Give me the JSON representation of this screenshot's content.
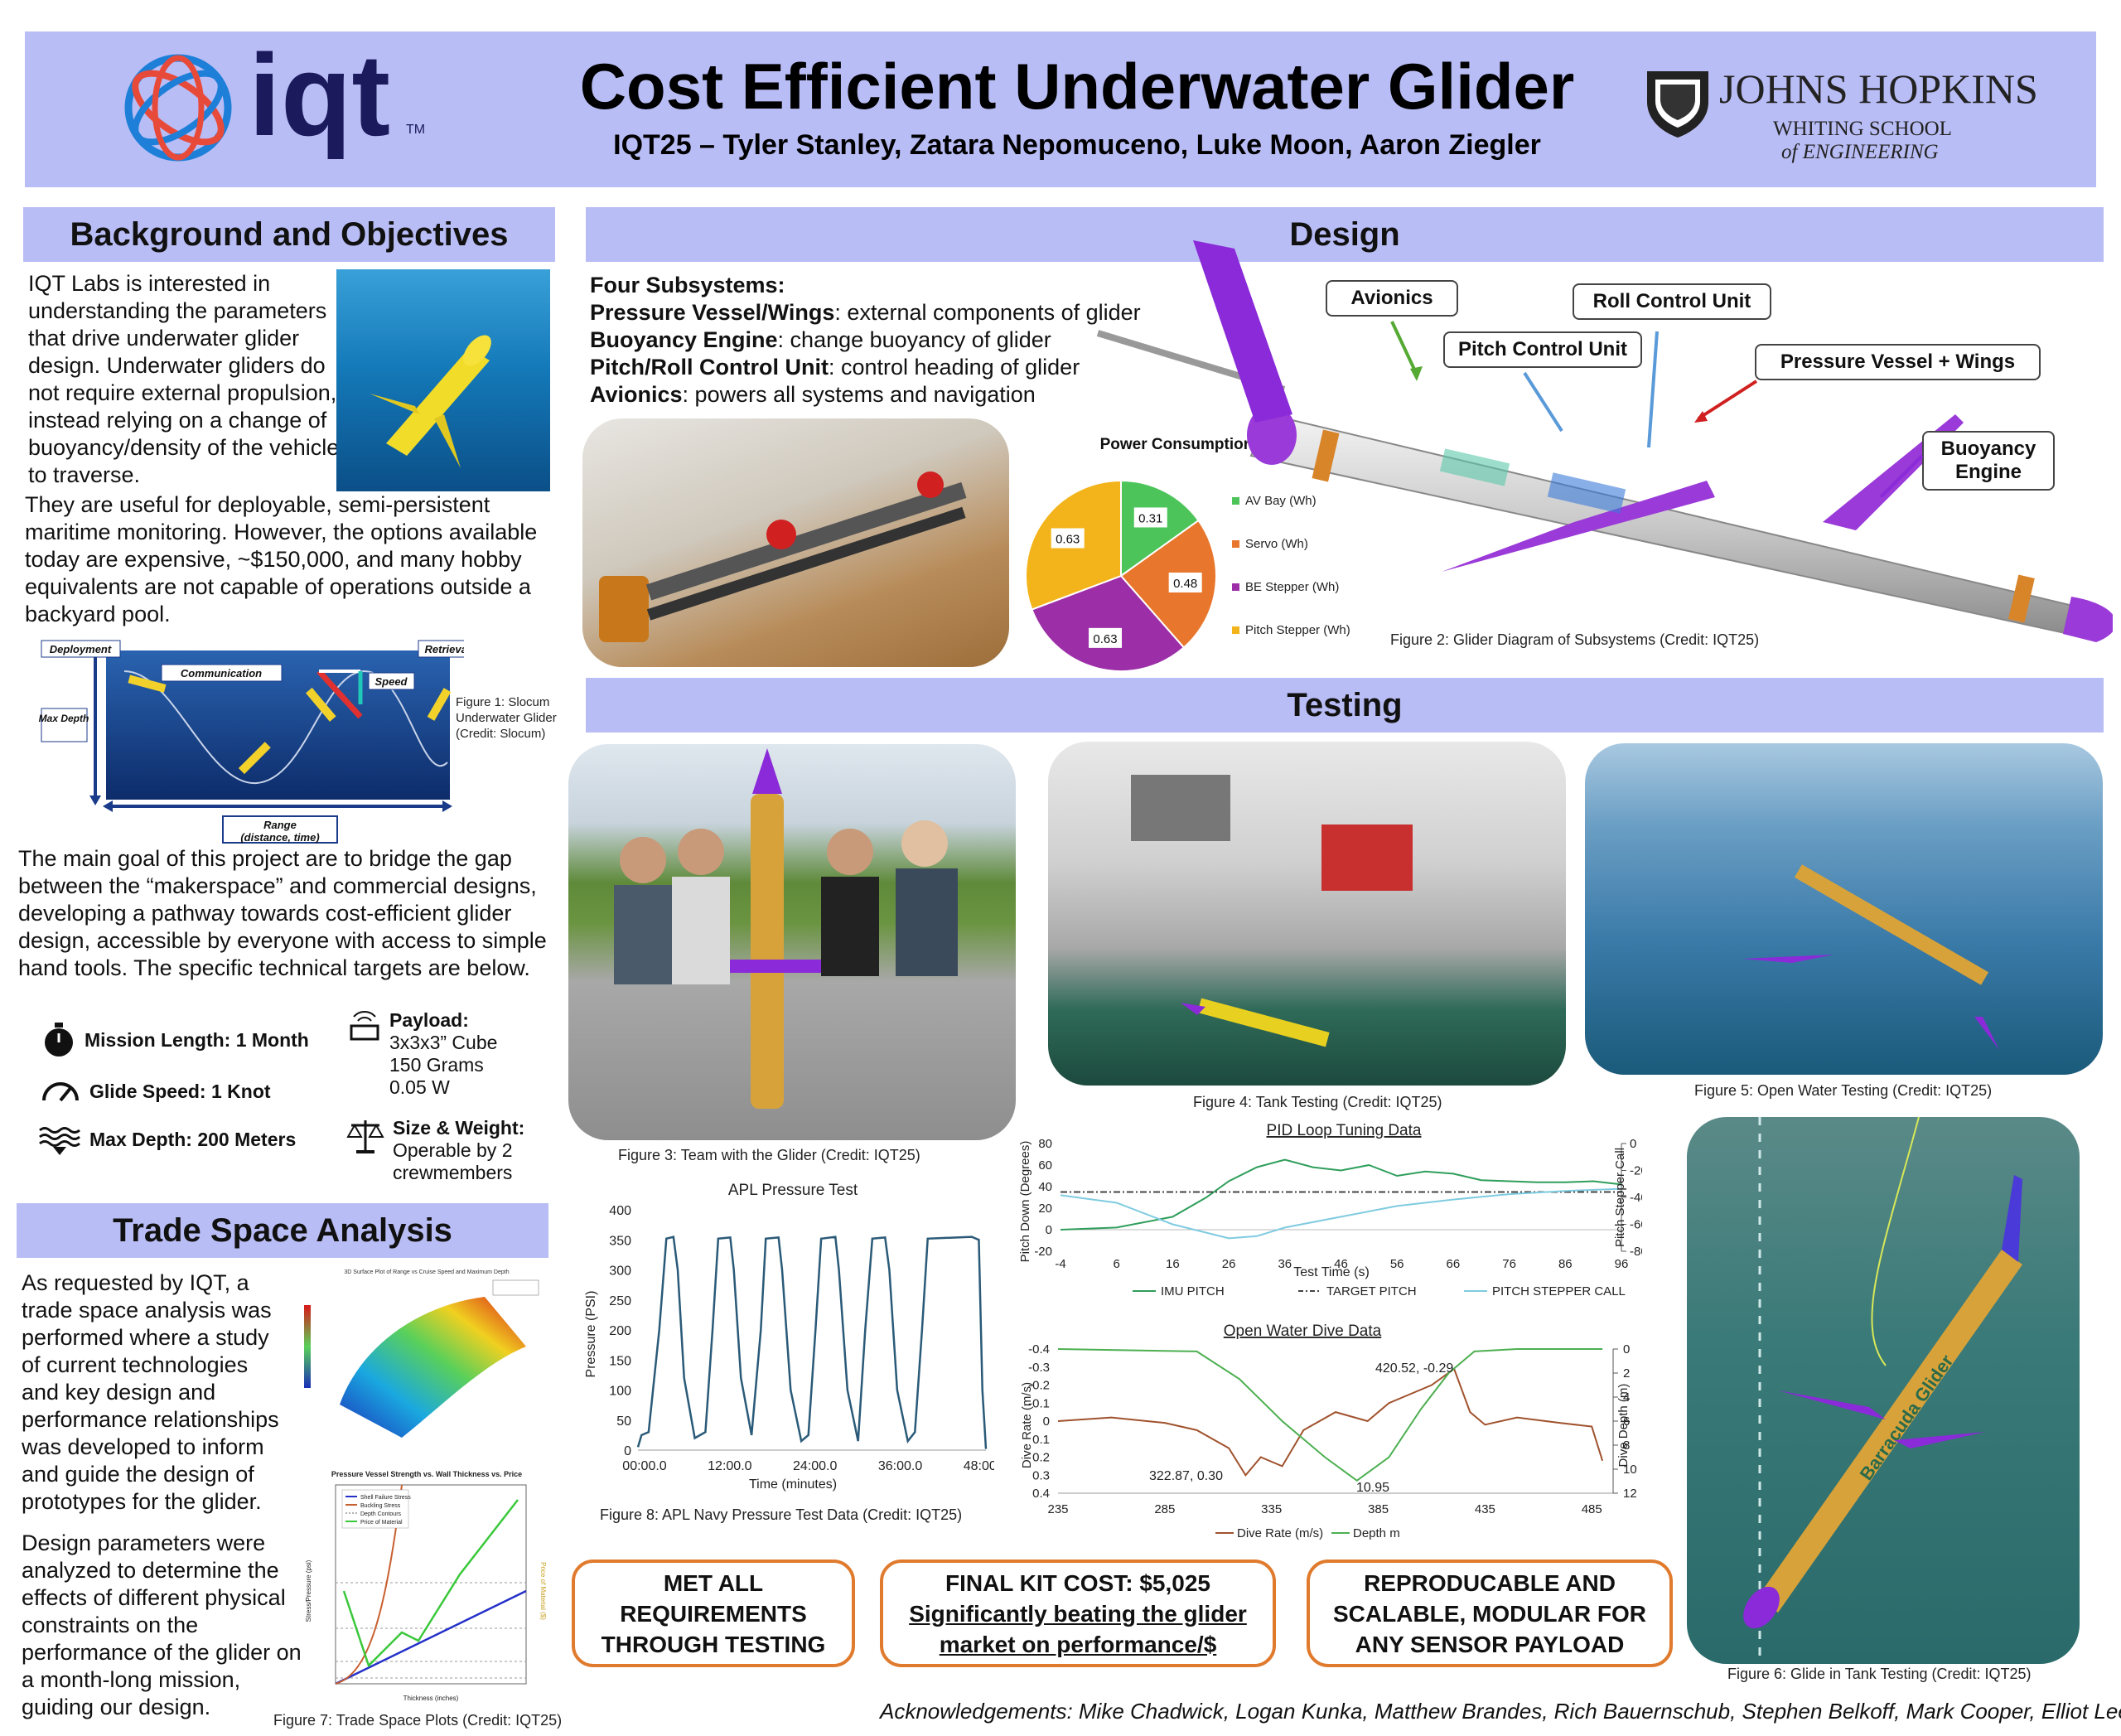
{
  "header": {
    "logo_text": "iqt",
    "logo_tm": "TM",
    "title": "Cost Efficient Underwater Glider",
    "authors": "IQT25 – Tyler Stanley, Zatara Nepomuceno, Luke Moon, Aaron Ziegler",
    "jhu_line1": "JOHNS HOPKINS",
    "jhu_line2": "WHITING SCHOOL",
    "jhu_line3": "of ENGINEERING"
  },
  "background": {
    "title": "Background and Objectives",
    "p1_wrap": "IQT Labs is interested in understanding the parameters that drive underwater glider design. Underwater gliders do not require external propulsion, instead relying on a change of buoyancy/density of the vehicle to traverse.",
    "p1_full": "They are useful for deployable, semi-persistent maritime monitoring. However, the options available today are expensive, ~$150,000, and many hobby equivalents are not capable of operations outside a backyard pool.",
    "fig1_labels": {
      "deployment": "Deployment",
      "retrieval": "Retrieval",
      "communication": "Communication",
      "speed": "Speed",
      "max_depth": "Max Depth",
      "range": "Range",
      "range_sub": "(distance, time)"
    },
    "fig1_caption": "Figure 1: Slocum Underwater Glider (Credit: Slocum)",
    "p2": "The main goal of this project are to bridge the gap between the “makerspace” and commercial designs, developing a pathway towards cost-efficient glider design, accessible by everyone with access to simple hand tools. The specific technical targets are below.",
    "targets": {
      "mission": "Mission Length: 1 Month",
      "speed": "Glide Speed: 1 Knot",
      "depth": "Max Depth: 200 Meters",
      "payload_title": "Payload:",
      "payload_lines": [
        "3x3x3” Cube",
        "150 Grams",
        "0.05 W"
      ],
      "size_title": "Size & Weight:",
      "size_lines": [
        "Operable by 2",
        "crewmembers"
      ]
    }
  },
  "trade": {
    "title": "Trade Space Analysis",
    "p1": "As requested by IQT, a trade space analysis was performed where a study of current technologies and key design and performance relationships was developed to inform and guide the design of prototypes for the glider.",
    "p2": "Design parameters were analyzed to determine the effects of different physical constraints on the performance of the glider on a month-long mission, guiding our design.",
    "plot1_title": "3D Surface Plot of Range vs Cruise Speed and Maximum Depth",
    "plot2_title": "Pressure Vessel Strength vs. Wall Thickness vs. Price",
    "plot2_legend": [
      "Shell Failure Stress",
      "Buckling Stress",
      "Depth Contours",
      "Price of Material"
    ],
    "plot2_xlabel": "Thickness (inches)",
    "plot2_ylabel": "Stress/Pressure (psi)",
    "plot2_y2label": "Price of Material ($)",
    "caption": "Figure 7: Trade Space Plots (Credit: IQT25)"
  },
  "design": {
    "title": "Design",
    "subsystems_title": "Four Subsystems:",
    "items": [
      {
        "name": "Pressure Vessel/Wings",
        "desc": ": external components of glider"
      },
      {
        "name": "Buoyancy Engine",
        "desc": ": change buoyancy of glider"
      },
      {
        "name": "Pitch/Roll Control Unit",
        "desc": ": control heading of glider"
      },
      {
        "name": "Avionics",
        "desc": ": powers all systems and navigation"
      }
    ],
    "callouts": {
      "avionics": "Avionics",
      "roll": "Roll Control Unit",
      "pitch": "Pitch Control Unit",
      "pressure": "Pressure Vessel + Wings",
      "buoyancy": "Buoyancy Engine"
    },
    "fig2_caption": "Figure 2: Glider Diagram of Subsystems (Credit: IQT25)",
    "glider_text": "Barracuda Glider"
  },
  "testing": {
    "title": "Testing",
    "fig3_caption": "Figure 3: Team with the Glider (Credit: IQT25)",
    "fig4_caption": "Figure 4: Tank Testing (Credit: IQT25)",
    "fig5_caption": "Figure 5: Open Water Testing (Credit: IQT25)",
    "fig6_caption": "Figure 6: Glide in Tank Testing (Credit: IQT25)",
    "fig8_caption": "Figure 8: APL Navy Pressure Test Data (Credit: IQT25)"
  },
  "results": {
    "r1": [
      "MET ALL",
      "REQUIREMENTS",
      "THROUGH TESTING"
    ],
    "r2_line1": "FINAL KIT COST: $5,025",
    "r2_line2": "Significantly beating the glider",
    "r2_line3": "market on performance/$",
    "r3": [
      "REPRODUCABLE AND",
      "SCALABLE, MODULAR FOR",
      "ANY SENSOR PAYLOAD"
    ]
  },
  "acknowledgements": "Acknowledgements: Mike Chadwick, Logan Kunka, Matthew Brandes, Rich Bauernschub, Stephen Belkoff, Mark Cooper, Elliot Lee",
  "chart_data": [
    {
      "type": "pie",
      "title": "Power Consumption",
      "labels": [
        "AV Bay (Wh)",
        "Servo (Wh)",
        "BE Stepper (Wh)",
        "Pitch Stepper (Wh)"
      ],
      "values": [
        0.31,
        0.48,
        0.63,
        0.63
      ],
      "colors": [
        "#4cc45a",
        "#e8762c",
        "#9c2fa8",
        "#f3b41b"
      ]
    },
    {
      "type": "line",
      "title": "APL Pressure Test",
      "xlabel": "Time (minutes)",
      "ylabel": "Pressure (PSI)",
      "x_ticks": [
        "00:00.0",
        "12:00.0",
        "24:00.0",
        "36:00.0",
        "48:00.0"
      ],
      "ylim": [
        0,
        400
      ],
      "y_ticks": [
        0,
        50,
        100,
        150,
        200,
        250,
        300,
        350,
        400
      ],
      "series": [
        {
          "values": [
            [
              0,
              5
            ],
            [
              0.5,
              25
            ],
            [
              1.5,
              30
            ],
            [
              3,
              200
            ],
            [
              4,
              352
            ],
            [
              5,
              355
            ],
            [
              5.6,
              300
            ],
            [
              6.5,
              120
            ],
            [
              8,
              20
            ],
            [
              9.5,
              30
            ],
            [
              10.5,
              200
            ],
            [
              11.3,
              352
            ],
            [
              13,
              354
            ],
            [
              13.5,
              300
            ],
            [
              14.5,
              120
            ],
            [
              16,
              25
            ],
            [
              17.3,
              200
            ],
            [
              18,
              352
            ],
            [
              19.8,
              354
            ],
            [
              20.3,
              300
            ],
            [
              21.5,
              100
            ],
            [
              23,
              15
            ],
            [
              24,
              25
            ],
            [
              25,
              200
            ],
            [
              25.8,
              352
            ],
            [
              27.8,
              355
            ],
            [
              28.3,
              300
            ],
            [
              29.5,
              100
            ],
            [
              31,
              15
            ],
            [
              32,
              200
            ],
            [
              33,
              352
            ],
            [
              34.8,
              354
            ],
            [
              35.4,
              300
            ],
            [
              36.5,
              100
            ],
            [
              38,
              15
            ],
            [
              39,
              30
            ],
            [
              40,
              200
            ],
            [
              40.8,
              352
            ],
            [
              47,
              355
            ],
            [
              48,
              350
            ],
            [
              48.5,
              100
            ],
            [
              49,
              2
            ]
          ]
        }
      ]
    },
    {
      "type": "line",
      "title": "PID Loop Tuning Data",
      "xlabel": "Test Time (s)",
      "ylabel": "Pitch Down (Degrees)",
      "y2label": "Pitch Stepper Call",
      "x_ticks": [
        -4,
        6,
        16,
        26,
        36,
        46,
        56,
        66,
        76,
        86,
        96
      ],
      "ylim": [
        -20,
        80
      ],
      "y_ticks": [
        -20,
        0,
        20,
        40,
        60,
        80
      ],
      "y2lim": [
        -8000,
        0
      ],
      "y2_ticks": [
        0,
        -2000,
        -4000,
        -6000,
        -8000
      ],
      "series": [
        {
          "name": "IMU PITCH",
          "color": "#2f9e5b",
          "values": [
            [
              -4,
              0
            ],
            [
              6,
              2
            ],
            [
              16,
              12
            ],
            [
              22,
              30
            ],
            [
              26,
              45
            ],
            [
              31,
              58
            ],
            [
              36,
              65
            ],
            [
              41,
              58
            ],
            [
              46,
              55
            ],
            [
              51,
              60
            ],
            [
              56,
              50
            ],
            [
              61,
              54
            ],
            [
              66,
              52
            ],
            [
              71,
              46
            ],
            [
              76,
              45
            ],
            [
              81,
              44
            ],
            [
              86,
              44
            ],
            [
              91,
              45
            ],
            [
              96,
              42
            ]
          ]
        },
        {
          "name": "TARGET PITCH",
          "color": "#444444",
          "values": [
            [
              -4,
              35
            ],
            [
              96,
              35
            ]
          ]
        },
        {
          "name": "PITCH STEPPER CALL",
          "color": "#7fcbe0",
          "values": [
            [
              -4,
              32
            ],
            [
              6,
              25
            ],
            [
              16,
              5
            ],
            [
              26,
              -8
            ],
            [
              31,
              -6
            ],
            [
              36,
              2
            ],
            [
              46,
              12
            ],
            [
              56,
              22
            ],
            [
              66,
              28
            ],
            [
              76,
              33
            ],
            [
              86,
              36
            ],
            [
              96,
              38
            ]
          ]
        }
      ]
    },
    {
      "type": "line",
      "title": "Open Water Dive Data",
      "ylabel": "Dive Rate (m/s)",
      "y2label": "Dive Depth (m)",
      "x_ticks": [
        235,
        285,
        335,
        385,
        435,
        485
      ],
      "ylim": [
        -0.4,
        0.4
      ],
      "y_ticks": [
        -0.4,
        -0.3,
        -0.2,
        -0.1,
        0,
        0.1,
        0.2,
        0.3,
        0.4
      ],
      "y2lim": [
        0,
        12
      ],
      "y2_ticks": [
        0,
        2,
        4,
        6,
        8,
        10,
        12
      ],
      "annotations": [
        "420.52, -0.29",
        "322.87, 0.30",
        "10.95"
      ],
      "series": [
        {
          "name": "Dive Rate (m/s)",
          "color": "#a0522d",
          "values": [
            [
              235,
              0
            ],
            [
              260,
              -0.02
            ],
            [
              285,
              0.01
            ],
            [
              300,
              0.05
            ],
            [
              315,
              0.15
            ],
            [
              322.87,
              0.3
            ],
            [
              330,
              0.2
            ],
            [
              340,
              0.25
            ],
            [
              350,
              0.05
            ],
            [
              365,
              -0.05
            ],
            [
              380,
              0
            ],
            [
              390,
              -0.1
            ],
            [
              400,
              -0.15
            ],
            [
              410,
              -0.2
            ],
            [
              420.52,
              -0.29
            ],
            [
              428,
              -0.05
            ],
            [
              435,
              0.02
            ],
            [
              450,
              -0.02
            ],
            [
              470,
              0.01
            ],
            [
              485,
              0.03
            ],
            [
              490,
              0.22
            ]
          ]
        },
        {
          "name": "Depth m",
          "color": "#4caf50",
          "values": [
            [
              235,
              0
            ],
            [
              300,
              0.2
            ],
            [
              320,
              2.5
            ],
            [
              340,
              6
            ],
            [
              360,
              9
            ],
            [
              375,
              10.95
            ],
            [
              390,
              9
            ],
            [
              405,
              5
            ],
            [
              418,
              2
            ],
            [
              430,
              0.2
            ],
            [
              450,
              0
            ],
            [
              490,
              0
            ]
          ]
        }
      ]
    }
  ]
}
